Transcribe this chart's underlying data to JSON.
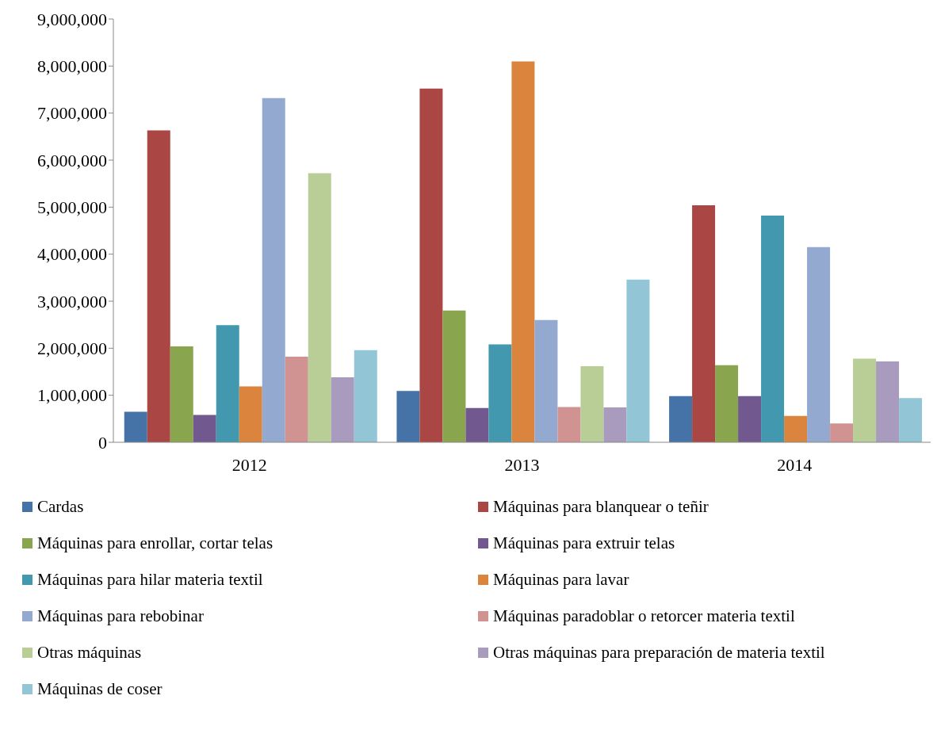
{
  "chart_data": {
    "type": "bar",
    "categories": [
      "2012",
      "2013",
      "2014"
    ],
    "series": [
      {
        "name": "Cardas",
        "color": "#4572a7",
        "values": [
          650000,
          1090000,
          980000
        ]
      },
      {
        "name": "Máquinas para blanquear o teñir",
        "color": "#aa4643",
        "values": [
          6630000,
          7520000,
          5040000
        ]
      },
      {
        "name": "Máquinas para enrollar, cortar telas",
        "color": "#89a54e",
        "values": [
          2040000,
          2800000,
          1640000
        ]
      },
      {
        "name": "Máquinas para extruir telas",
        "color": "#71588f",
        "values": [
          580000,
          730000,
          980000
        ]
      },
      {
        "name": "Máquinas para hilar materia textil",
        "color": "#4198af",
        "values": [
          2490000,
          2080000,
          4820000
        ]
      },
      {
        "name": "Máquinas para lavar",
        "color": "#db843d",
        "values": [
          1190000,
          8100000,
          560000
        ]
      },
      {
        "name": "Máquinas para rebobinar",
        "color": "#93a9cf",
        "values": [
          7320000,
          2600000,
          4150000
        ]
      },
      {
        "name": "Máquinas paradoblar o retorcer materia textil",
        "color": "#d19392",
        "values": [
          1820000,
          750000,
          400000
        ]
      },
      {
        "name": "Otras máquinas",
        "color": "#b9cd96",
        "values": [
          5720000,
          1620000,
          1780000
        ]
      },
      {
        "name": "Otras máquinas para preparación de materia textil",
        "color": "#a99bbd",
        "values": [
          1380000,
          740000,
          1720000
        ]
      },
      {
        "name": "Máquinas de coser",
        "color": "#92c5d6",
        "values": [
          1960000,
          3460000,
          940000
        ]
      }
    ],
    "ylim": [
      0,
      9000000
    ],
    "yticks": [
      0,
      {
        "value": 1000000,
        "label": "1,000,000"
      },
      {
        "value": 2000000,
        "label": "2,000,000"
      },
      {
        "value": 3000000,
        "label": "3,000,000"
      },
      {
        "value": 4000000,
        "label": "4,000,000"
      },
      {
        "value": 5000000,
        "label": "5,000,000"
      },
      {
        "value": 6000000,
        "label": "6,000,000"
      },
      {
        "value": 7000000,
        "label": "7,000,000"
      },
      {
        "value": 8000000,
        "label": "8,000,000"
      },
      {
        "value": 9000000,
        "label": "9,000,000"
      }
    ],
    "grid": false,
    "legend": "bottom"
  }
}
